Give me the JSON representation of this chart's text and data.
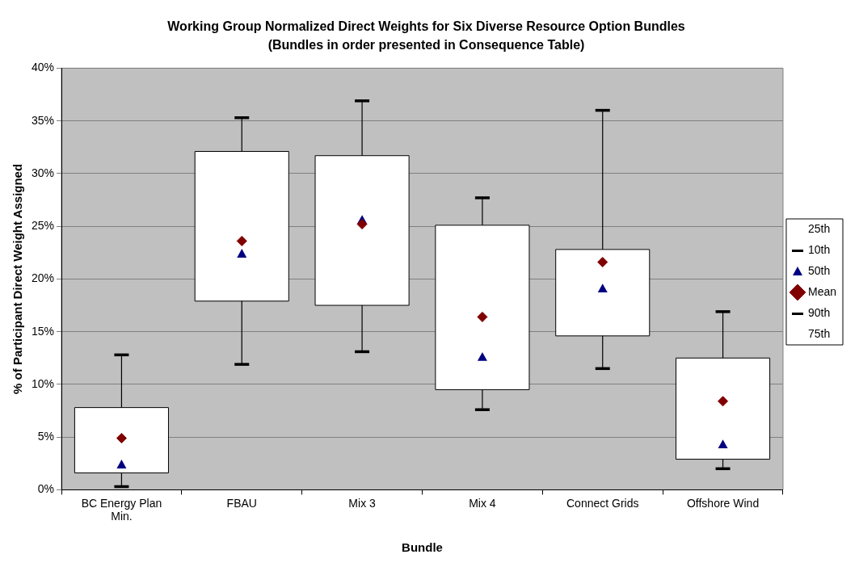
{
  "chart_data": {
    "type": "box",
    "title": "Working Group Normalized Direct Weights for Six Diverse Resource Option Bundles",
    "subtitle": "(Bundles in order presented in Consequence Table)",
    "xlabel": "Bundle",
    "ylabel": "% of Participant Direct Weight Assigned",
    "categories": [
      "BC Energy Plan Min.",
      "FBAU",
      "Mix 3",
      "Mix 4",
      "Connect Grids",
      "Offshore Wind"
    ],
    "series": [
      {
        "type": "box",
        "color": "#ffffff",
        "boxes": [
          {
            "low": 0.3,
            "q1": 1.6,
            "median": 2.4,
            "q3": 7.8,
            "high": 12.8
          },
          {
            "low": 11.9,
            "q1": 17.9,
            "median": 22.4,
            "q3": 32.1,
            "high": 35.3
          },
          {
            "low": 13.1,
            "q1": 17.5,
            "median": 25.6,
            "q3": 31.7,
            "high": 36.9
          },
          {
            "low": 7.6,
            "q1": 9.5,
            "median": 12.6,
            "q3": 25.1,
            "high": 27.7
          },
          {
            "low": 11.5,
            "q1": 14.6,
            "median": 19.1,
            "q3": 22.8,
            "high": 36.0
          },
          {
            "low": 2.0,
            "q1": 2.9,
            "median": 4.3,
            "q3": 12.5,
            "high": 16.9
          }
        ]
      },
      {
        "name": "Mean",
        "type": "scatter",
        "color": "#800000",
        "marker": "diamond",
        "x": [
          "BC Energy Plan Min.",
          "FBAU",
          "Mix 3",
          "Mix 4",
          "Connect Grids",
          "Offshore Wind"
        ],
        "values": [
          4.9,
          23.6,
          25.2,
          16.4,
          21.6,
          8.4
        ]
      }
    ],
    "annotations": [
      "25th",
      "10th",
      "50th",
      "90th",
      "75th"
    ],
    "ylim": [
      0,
      40
    ],
    "yticks": [
      {
        "value": 0,
        "label": "0%"
      },
      {
        "value": 5,
        "label": "5%"
      },
      {
        "value": 10,
        "label": "10%"
      },
      {
        "value": 15,
        "label": "15%"
      },
      {
        "value": 20,
        "label": "20%"
      },
      {
        "value": 25,
        "label": "25%"
      },
      {
        "value": 30,
        "label": "30%"
      },
      {
        "value": 35,
        "label": "35%"
      },
      {
        "value": 40,
        "label": "40%"
      }
    ],
    "grid": "y",
    "legend": "right"
  }
}
